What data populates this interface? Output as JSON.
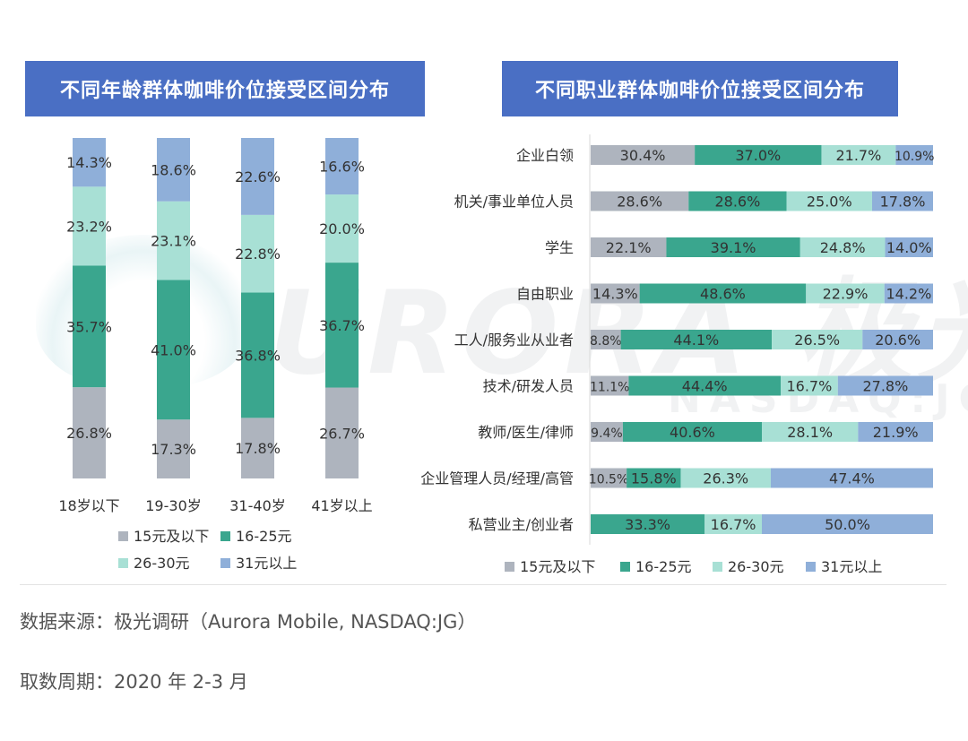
{
  "titles": {
    "left": "不同年龄群体咖啡价位接受区间分布",
    "right": "不同职业群体咖啡价位接受区间分布"
  },
  "colors": {
    "s1": "#aeb4be",
    "s2": "#3aa68e",
    "s3": "#a8e0d5",
    "s4": "#8fafd9",
    "title_bg": "#4a6fc4"
  },
  "watermark": {
    "main": "URORA 极光",
    "sub": "NASDAQ:JG"
  },
  "footer": {
    "source": "数据来源：极光调研（Aurora Mobile, NASDAQ:JG）",
    "period": "取数周期：2020 年 2-3 月"
  },
  "chart_data": [
    {
      "type": "bar",
      "orientation": "vertical",
      "stacked": "100%",
      "title": "不同年龄群体咖啡价位接受区间分布",
      "categories": [
        "18岁以下",
        "19-30岁",
        "31-40岁",
        "41岁以上"
      ],
      "series": [
        {
          "name": "15元及以下",
          "values": [
            26.8,
            17.3,
            17.8,
            26.7
          ],
          "labels": [
            "26.8%",
            "17.3%",
            "17.8%",
            "26.7%"
          ]
        },
        {
          "name": "16-25元",
          "values": [
            35.7,
            41.0,
            36.8,
            36.7
          ],
          "labels": [
            "35.7%",
            "41.0%",
            "36.8%",
            "36.7%"
          ]
        },
        {
          "name": "26-30元",
          "values": [
            23.2,
            23.1,
            22.8,
            20.0
          ],
          "labels": [
            "23.2%",
            "23.1%",
            "22.8%",
            "20.0%"
          ]
        },
        {
          "name": "31元以上",
          "values": [
            14.3,
            18.6,
            22.6,
            16.6
          ],
          "labels": [
            "14.3%",
            "18.6%",
            "22.6%",
            "16.6%"
          ]
        }
      ],
      "legend": "bottom"
    },
    {
      "type": "bar",
      "orientation": "horizontal",
      "stacked": "100%",
      "title": "不同职业群体咖啡价位接受区间分布",
      "categories": [
        "企业白领",
        "机关/事业单位人员",
        "学生",
        "自由职业",
        "工人/服务业从业者",
        "技术/研发人员",
        "教师/医生/律师",
        "企业管理人员/经理/高管",
        "私营业主/创业者"
      ],
      "series": [
        {
          "name": "15元及以下",
          "values": [
            30.4,
            28.6,
            22.1,
            14.3,
            8.8,
            11.1,
            9.4,
            10.5,
            0
          ],
          "labels": [
            "30.4%",
            "28.6%",
            "22.1%",
            "14.3%",
            "8.8%",
            "11.1%",
            "9.4%",
            "10.5%",
            ""
          ]
        },
        {
          "name": "16-25元",
          "values": [
            37.0,
            28.6,
            39.1,
            48.6,
            44.1,
            44.4,
            40.6,
            15.8,
            33.3
          ],
          "labels": [
            "37.0%",
            "28.6%",
            "39.1%",
            "48.6%",
            "44.1%",
            "44.4%",
            "40.6%",
            "15.8%",
            "33.3%"
          ]
        },
        {
          "name": "26-30元",
          "values": [
            21.7,
            25.0,
            24.8,
            22.9,
            26.5,
            16.7,
            28.1,
            26.3,
            16.7
          ],
          "labels": [
            "21.7%",
            "25.0%",
            "24.8%",
            "22.9%",
            "26.5%",
            "16.7%",
            "28.1%",
            "26.3%",
            "16.7%"
          ]
        },
        {
          "name": "31元以上",
          "values": [
            10.9,
            17.8,
            14.0,
            14.2,
            20.6,
            27.8,
            21.9,
            47.4,
            50.0
          ],
          "labels": [
            "10.9%",
            "17.8%",
            "14.0%",
            "14.2%",
            "20.6%",
            "27.8%",
            "21.9%",
            "47.4%",
            "50.0%"
          ]
        }
      ],
      "legend": "bottom"
    }
  ]
}
